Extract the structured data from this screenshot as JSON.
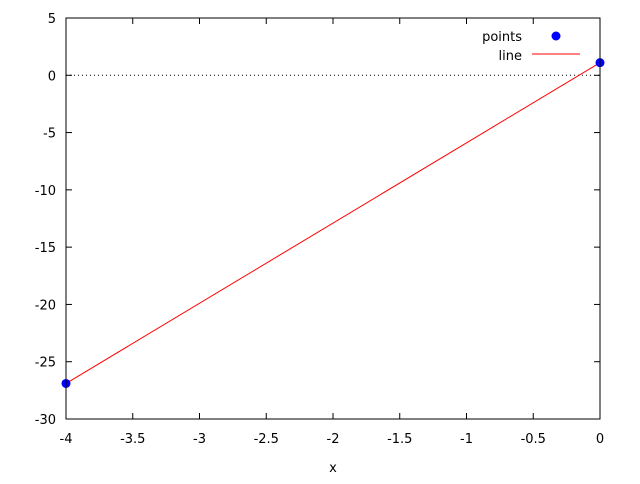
{
  "chart_data": {
    "type": "line",
    "title": "",
    "xlabel": "x",
    "ylabel": "",
    "xlim": [
      -4,
      0
    ],
    "ylim": [
      -30,
      5
    ],
    "xticks": [
      -4,
      -3.5,
      -3,
      -2.5,
      -2,
      -1.5,
      -1,
      -0.5,
      0
    ],
    "xtick_labels": [
      "-4",
      "-3.5",
      "-3",
      "-2.5",
      "-2",
      "-1.5",
      "-1",
      "-0.5",
      "0"
    ],
    "yticks": [
      -30,
      -25,
      -20,
      -15,
      -10,
      -5,
      0,
      5
    ],
    "ytick_labels": [
      "-30",
      "-25",
      "-20",
      "-15",
      "-10",
      "-5",
      "0",
      "5"
    ],
    "grid": false,
    "zero_axis": true,
    "legend_position": "top-right",
    "series": [
      {
        "name": "points",
        "kind": "scatter",
        "color": "#0000ff",
        "x": [
          -4,
          0
        ],
        "y": [
          -26.9,
          1.1
        ]
      },
      {
        "name": "line",
        "kind": "line",
        "color": "#ff0000",
        "x": [
          -4,
          0
        ],
        "y": [
          -26.9,
          1.1
        ]
      }
    ]
  }
}
